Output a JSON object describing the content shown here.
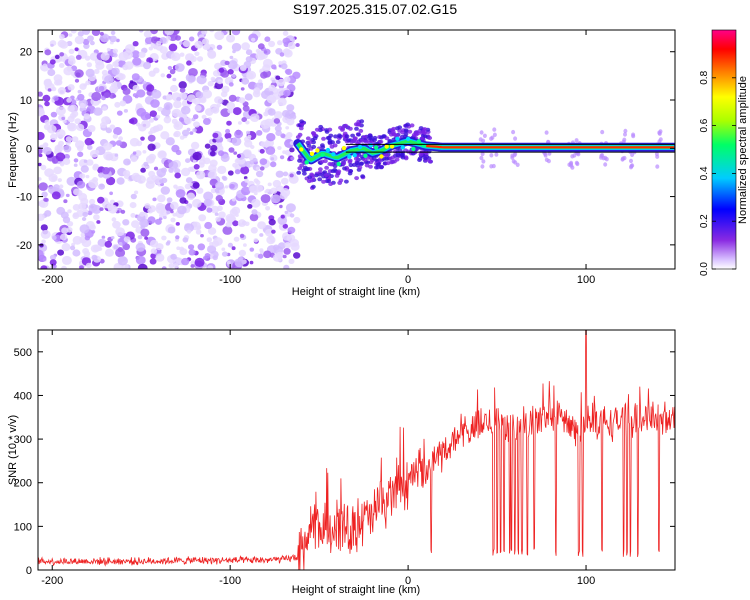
{
  "title": "S197.2025.315.07.02.G15",
  "chart_data": [
    {
      "type": "heatmap",
      "title": "S197.2025.315.07.02.G15",
      "xlabel": "Height of straight line (km)",
      "ylabel": "Frequency (Hz)",
      "xlim": [
        -208,
        150
      ],
      "ylim": [
        -25,
        24.5
      ],
      "xticks": [
        -200,
        -100,
        0,
        100
      ],
      "xtick_labels": [
        "-200",
        "-100",
        "0",
        "100"
      ],
      "yticks": [
        -20,
        -10,
        0,
        10,
        20
      ],
      "ytick_labels": [
        "-20",
        "-10",
        "0",
        "10",
        "20"
      ],
      "noise_region_x": [
        -208,
        -62
      ],
      "signal_trace": {
        "x": [
          -62,
          -55,
          -48,
          -40,
          -32,
          -25,
          -20,
          -15,
          -10,
          -5,
          0,
          5,
          10,
          20,
          40,
          60,
          80,
          100,
          120,
          150
        ],
        "y": [
          1.0,
          -2.5,
          -1.0,
          -2.0,
          -0.5,
          0.0,
          -1.0,
          -0.5,
          0.5,
          1.0,
          1.5,
          1.0,
          0.5,
          0.2,
          0.2,
          0.2,
          0.2,
          0.2,
          0.2,
          0.2
        ]
      },
      "reference_band_hz": [
        -0.8,
        0.8
      ],
      "colorbar": {
        "label": "Normalized spectral amplitude",
        "range": [
          0.0,
          1.0
        ],
        "ticks": [
          0.0,
          0.2,
          0.4,
          0.6,
          0.8
        ],
        "tick_labels": [
          "0.0",
          "0.2",
          "0.4",
          "0.6",
          "0.8"
        ]
      },
      "grid": false
    },
    {
      "type": "line",
      "xlabel": "Height of straight line (km)",
      "ylabel": "SNR (10 * v/v)",
      "xlim": [
        -208,
        150
      ],
      "ylim": [
        0,
        550
      ],
      "xticks": [
        -200,
        -100,
        0,
        100
      ],
      "xtick_labels": [
        "-200",
        "-100",
        "0",
        "100"
      ],
      "yticks": [
        0,
        100,
        200,
        300,
        400,
        500
      ],
      "ytick_labels": [
        "0",
        "100",
        "200",
        "300",
        "400",
        "500"
      ],
      "series": [
        {
          "name": "SNR",
          "color": "#ee2222",
          "x": [
            -208,
            -180,
            -150,
            -120,
            -90,
            -70,
            -62,
            -58,
            -55,
            -50,
            -45,
            -40,
            -35,
            -30,
            -25,
            -20,
            -15,
            -10,
            -5,
            0,
            5,
            10,
            15,
            20,
            25,
            30,
            35,
            40,
            45,
            50,
            55,
            60,
            65,
            70,
            75,
            80,
            85,
            90,
            95,
            100,
            105,
            110,
            115,
            120,
            125,
            130,
            135,
            140,
            145,
            150
          ],
          "values": [
            20,
            20,
            20,
            22,
            22,
            24,
            30,
            60,
            90,
            90,
            90,
            105,
            90,
            100,
            115,
            120,
            150,
            170,
            190,
            200,
            215,
            225,
            255,
            270,
            290,
            310,
            320,
            330,
            340,
            345,
            330,
            335,
            340,
            320,
            350,
            360,
            355,
            330,
            320,
            350,
            340,
            340,
            335,
            345,
            345,
            340,
            345,
            350,
            350,
            350
          ]
        }
      ],
      "dropouts_x": [
        13,
        48,
        50,
        52,
        54,
        57,
        58,
        60,
        62,
        64,
        67,
        71,
        83,
        96,
        98,
        109,
        121,
        123,
        125,
        129,
        141
      ],
      "peak": {
        "x": 100,
        "y": 550
      },
      "grid": false
    }
  ]
}
